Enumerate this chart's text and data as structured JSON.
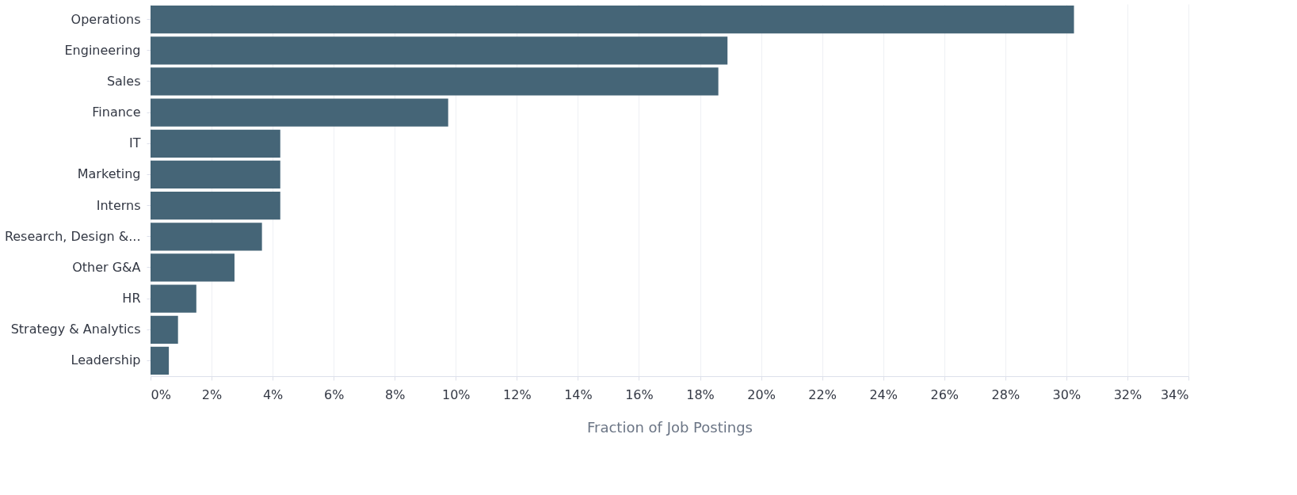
{
  "chart_data": {
    "type": "bar",
    "orientation": "horizontal",
    "xlabel": "Fraction of Job Postings",
    "categories": [
      "Operations",
      "Engineering",
      "Sales",
      "Finance",
      "IT",
      "Marketing",
      "Interns",
      "Research, Design &...",
      "Other G&A",
      "HR",
      "Strategy & Analytics",
      "Leadership"
    ],
    "values": [
      30.25,
      18.9,
      18.6,
      9.75,
      4.25,
      4.25,
      4.25,
      3.65,
      2.75,
      1.5,
      0.9,
      0.6
    ],
    "color": "#456577",
    "xlim": [
      0,
      34
    ],
    "xticks": [
      {
        "value": 0,
        "label": "0%"
      },
      {
        "value": 2,
        "label": "2%"
      },
      {
        "value": 4,
        "label": "4%"
      },
      {
        "value": 6,
        "label": "6%"
      },
      {
        "value": 8,
        "label": "8%"
      },
      {
        "value": 10,
        "label": "10%"
      },
      {
        "value": 12,
        "label": "12%"
      },
      {
        "value": 14,
        "label": "14%"
      },
      {
        "value": 16,
        "label": "16%"
      },
      {
        "value": 18,
        "label": "18%"
      },
      {
        "value": 20,
        "label": "20%"
      },
      {
        "value": 22,
        "label": "22%"
      },
      {
        "value": 24,
        "label": "24%"
      },
      {
        "value": 26,
        "label": "26%"
      },
      {
        "value": 28,
        "label": "28%"
      },
      {
        "value": 30,
        "label": "30%"
      },
      {
        "value": 32,
        "label": "32%"
      },
      {
        "value": 34,
        "label": "34%"
      }
    ],
    "grid": "x"
  }
}
